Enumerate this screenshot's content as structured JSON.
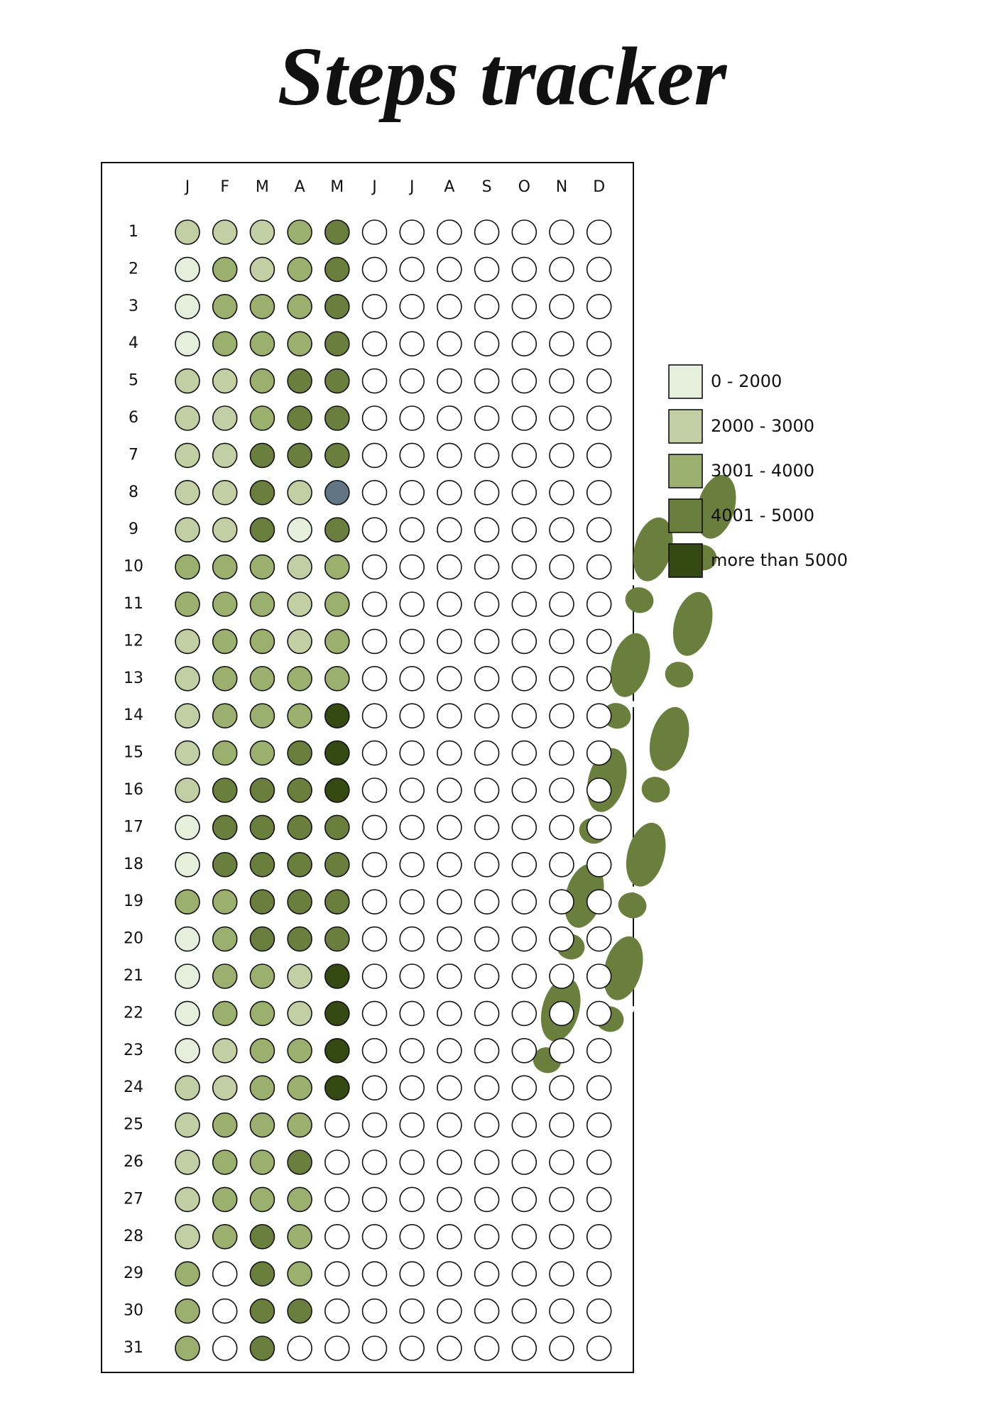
{
  "title": "Steps tracker",
  "months": [
    "J",
    "F",
    "M",
    "A",
    "M",
    "J",
    "J",
    "A",
    "S",
    "O",
    "N",
    "D"
  ],
  "days": [
    "1",
    "2",
    "3",
    "4",
    "5",
    "6",
    "7",
    "8",
    "9",
    "10",
    "11",
    "12",
    "13",
    "14",
    "15",
    "16",
    "17",
    "18",
    "19",
    "20",
    "21",
    "22",
    "23",
    "24",
    "25",
    "26",
    "27",
    "28",
    "29",
    "30",
    "31"
  ],
  "legend": [
    {
      "label": "0 - 2000",
      "color": "#e6eedc"
    },
    {
      "label": "2000 - 3000",
      "color": "#c2cfa4"
    },
    {
      "label": "3001 - 4000",
      "color": "#9bb06e"
    },
    {
      "label": "4001 - 5000",
      "color": "#6a7f3e"
    },
    {
      "label": "more than 5000",
      "color": "#344a12"
    }
  ],
  "rows": [
    [
      1,
      1,
      1,
      2,
      3,
      null,
      null,
      null,
      null,
      null,
      null,
      null
    ],
    [
      0,
      2,
      1,
      2,
      3,
      null,
      null,
      null,
      null,
      null,
      null,
      null
    ],
    [
      0,
      2,
      2,
      2,
      3,
      null,
      null,
      null,
      null,
      null,
      null,
      null
    ],
    [
      0,
      2,
      2,
      2,
      3,
      null,
      null,
      null,
      null,
      null,
      null,
      null
    ],
    [
      1,
      1,
      2,
      3,
      3,
      null,
      null,
      null,
      null,
      null,
      null,
      null
    ],
    [
      1,
      1,
      2,
      3,
      3,
      null,
      null,
      null,
      null,
      null,
      null,
      null
    ],
    [
      1,
      1,
      3,
      3,
      3,
      null,
      null,
      null,
      null,
      null,
      null,
      null
    ],
    [
      1,
      1,
      3,
      1,
      "#627585",
      null,
      null,
      null,
      null,
      null,
      null,
      null
    ],
    [
      1,
      1,
      3,
      0,
      3,
      null,
      null,
      null,
      null,
      null,
      null,
      null
    ],
    [
      2,
      2,
      2,
      1,
      2,
      null,
      null,
      null,
      null,
      null,
      null,
      null
    ],
    [
      2,
      2,
      2,
      1,
      2,
      null,
      null,
      null,
      null,
      null,
      null,
      null
    ],
    [
      1,
      2,
      2,
      1,
      2,
      null,
      null,
      null,
      null,
      null,
      null,
      null
    ],
    [
      1,
      2,
      2,
      2,
      2,
      null,
      null,
      null,
      null,
      null,
      null,
      null
    ],
    [
      1,
      2,
      2,
      2,
      4,
      null,
      null,
      null,
      null,
      null,
      null,
      null
    ],
    [
      1,
      2,
      2,
      3,
      4,
      null,
      null,
      null,
      null,
      null,
      null,
      null
    ],
    [
      1,
      3,
      3,
      3,
      4,
      null,
      null,
      null,
      null,
      null,
      null,
      null
    ],
    [
      0,
      3,
      3,
      3,
      3,
      null,
      null,
      null,
      null,
      null,
      null,
      null
    ],
    [
      0,
      3,
      3,
      3,
      3,
      null,
      null,
      null,
      null,
      null,
      null,
      null
    ],
    [
      2,
      2,
      3,
      3,
      3,
      null,
      null,
      null,
      null,
      null,
      null,
      null
    ],
    [
      0,
      2,
      3,
      3,
      3,
      null,
      null,
      null,
      null,
      null,
      null,
      null
    ],
    [
      0,
      2,
      2,
      1,
      4,
      null,
      null,
      null,
      null,
      null,
      null,
      null
    ],
    [
      0,
      2,
      2,
      1,
      4,
      null,
      null,
      null,
      null,
      null,
      null,
      null
    ],
    [
      0,
      1,
      2,
      2,
      4,
      null,
      null,
      null,
      null,
      null,
      null,
      null
    ],
    [
      1,
      1,
      2,
      2,
      4,
      null,
      null,
      null,
      null,
      null,
      null,
      null
    ],
    [
      1,
      2,
      2,
      2,
      null,
      null,
      null,
      null,
      null,
      null,
      null,
      null
    ],
    [
      1,
      2,
      2,
      3,
      null,
      null,
      null,
      null,
      null,
      null,
      null,
      null
    ],
    [
      1,
      2,
      2,
      2,
      null,
      null,
      null,
      null,
      null,
      null,
      null,
      null
    ],
    [
      1,
      2,
      3,
      2,
      null,
      null,
      null,
      null,
      null,
      null,
      null,
      null
    ],
    [
      2,
      null,
      3,
      2,
      null,
      null,
      null,
      null,
      null,
      null,
      null,
      null
    ],
    [
      2,
      null,
      3,
      3,
      null,
      null,
      null,
      null,
      null,
      null,
      null,
      null
    ],
    [
      2,
      null,
      3,
      null,
      null,
      null,
      null,
      null,
      null,
      null,
      null,
      null
    ]
  ]
}
